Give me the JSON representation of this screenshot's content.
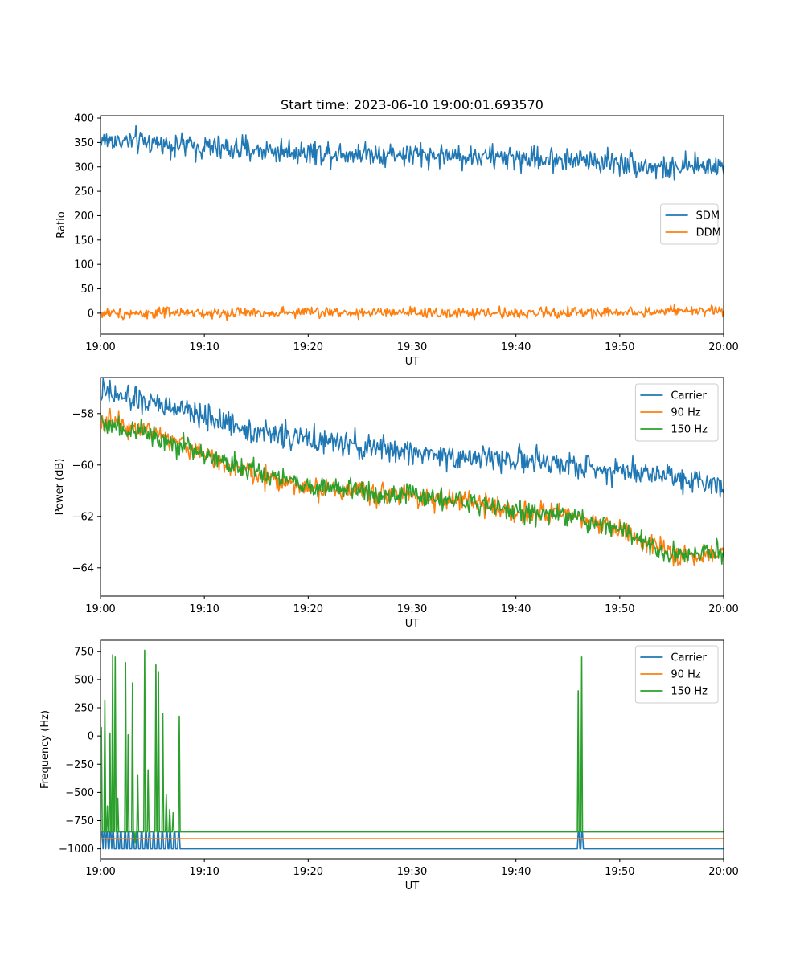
{
  "figure": {
    "title": "Start time: 2023-06-10 19:00:01.693570"
  },
  "chart_data": [
    {
      "type": "line",
      "title": "Start time: 2023-06-10 19:00:01.693570",
      "xlabel": "UT",
      "ylabel": "Ratio",
      "x_range": [
        "19:00",
        "20:00"
      ],
      "xticks": [
        "19:00",
        "19:10",
        "19:20",
        "19:30",
        "19:40",
        "19:50",
        "20:00"
      ],
      "ylim": [
        -43,
        405
      ],
      "yticks": [
        0,
        50,
        100,
        150,
        200,
        250,
        300,
        350,
        400
      ],
      "legend_position": "center-right",
      "grid": false,
      "series": [
        {
          "name": "SDM",
          "color": "#1f77b4",
          "x_minutes": [
            0,
            5,
            10,
            15,
            20,
            25,
            30,
            35,
            40,
            45,
            50,
            55,
            60
          ],
          "values": [
            355,
            350,
            340,
            335,
            330,
            328,
            325,
            322,
            318,
            315,
            310,
            295,
            305
          ],
          "noise": 18
        },
        {
          "name": "DDM",
          "color": "#ff7f0e",
          "x_minutes": [
            0,
            10,
            20,
            30,
            40,
            50,
            60
          ],
          "values": [
            0,
            0,
            2,
            0,
            0,
            2,
            5
          ],
          "noise": 8
        }
      ]
    },
    {
      "type": "line",
      "title": "",
      "xlabel": "UT",
      "ylabel": "Power (dB)",
      "x_range": [
        "19:00",
        "20:00"
      ],
      "xticks": [
        "19:00",
        "19:10",
        "19:20",
        "19:30",
        "19:40",
        "19:50",
        "20:00"
      ],
      "ylim": [
        -65.1,
        -56.6
      ],
      "yticks": [
        -58,
        -60,
        -62,
        -64
      ],
      "legend_position": "top-right",
      "grid": false,
      "series": [
        {
          "name": "Carrier",
          "color": "#1f77b4",
          "x_minutes": [
            0,
            5,
            10,
            15,
            20,
            25,
            30,
            35,
            40,
            45,
            50,
            55,
            60
          ],
          "values": [
            -57.2,
            -57.6,
            -58.1,
            -58.7,
            -59.0,
            -59.3,
            -59.5,
            -59.7,
            -59.8,
            -60.0,
            -60.2,
            -60.4,
            -60.8
          ],
          "noise": 0.35
        },
        {
          "name": "90 Hz",
          "color": "#ff7f0e",
          "x_minutes": [
            0,
            5,
            10,
            15,
            20,
            25,
            30,
            35,
            40,
            45,
            50,
            55,
            60
          ],
          "values": [
            -58.2,
            -58.7,
            -59.6,
            -60.4,
            -60.9,
            -61.0,
            -61.2,
            -61.4,
            -61.8,
            -62.0,
            -62.5,
            -63.5,
            -63.5
          ],
          "noise": 0.3
        },
        {
          "name": "150 Hz",
          "color": "#2ca02c",
          "x_minutes": [
            0,
            5,
            10,
            15,
            20,
            25,
            30,
            35,
            40,
            45,
            50,
            55,
            60
          ],
          "values": [
            -58.3,
            -58.8,
            -59.6,
            -60.3,
            -60.8,
            -61.0,
            -61.2,
            -61.4,
            -61.8,
            -62.0,
            -62.5,
            -63.5,
            -63.4
          ],
          "noise": 0.3
        }
      ]
    },
    {
      "type": "line",
      "title": "",
      "xlabel": "UT",
      "ylabel": "Frequency (Hz)",
      "x_range": [
        "19:00",
        "20:00"
      ],
      "xticks": [
        "19:00",
        "19:10",
        "19:20",
        "19:30",
        "19:40",
        "19:50",
        "20:00"
      ],
      "ylim": [
        -1088,
        848
      ],
      "yticks": [
        750,
        500,
        250,
        0,
        -250,
        -500,
        -750,
        -1000
      ],
      "legend_position": "top-right",
      "grid": false,
      "series": [
        {
          "name": "Carrier",
          "color": "#1f77b4",
          "baseline": -1000,
          "glitch_minutes": [
            0.05,
            0.3,
            0.6,
            0.9,
            1.2,
            1.6,
            1.9,
            2.3,
            2.7,
            3.1,
            3.5,
            3.9,
            4.3,
            4.7,
            5.1,
            5.5,
            5.9,
            6.3,
            6.7,
            7.1,
            7.5,
            46.0,
            46.3
          ],
          "glitch_value": -850
        },
        {
          "name": "90 Hz",
          "color": "#ff7f0e",
          "baseline": -910
        },
        {
          "name": "150 Hz",
          "color": "#2ca02c",
          "baseline": -850,
          "spike_minutes": [
            0.1,
            0.4,
            0.65,
            0.9,
            1.15,
            1.4,
            1.7,
            2.4,
            2.7,
            3.05,
            3.3,
            3.6,
            4.25,
            4.6,
            5.3,
            5.6,
            6.0,
            6.3,
            6.7,
            7.0,
            7.6,
            46.0,
            46.3
          ],
          "spike_values": [
            75,
            320,
            -620,
            25,
            720,
            700,
            -550,
            650,
            10,
            470,
            -950,
            -350,
            760,
            -300,
            630,
            570,
            200,
            -520,
            -650,
            -680,
            175,
            400,
            700
          ]
        }
      ]
    }
  ]
}
